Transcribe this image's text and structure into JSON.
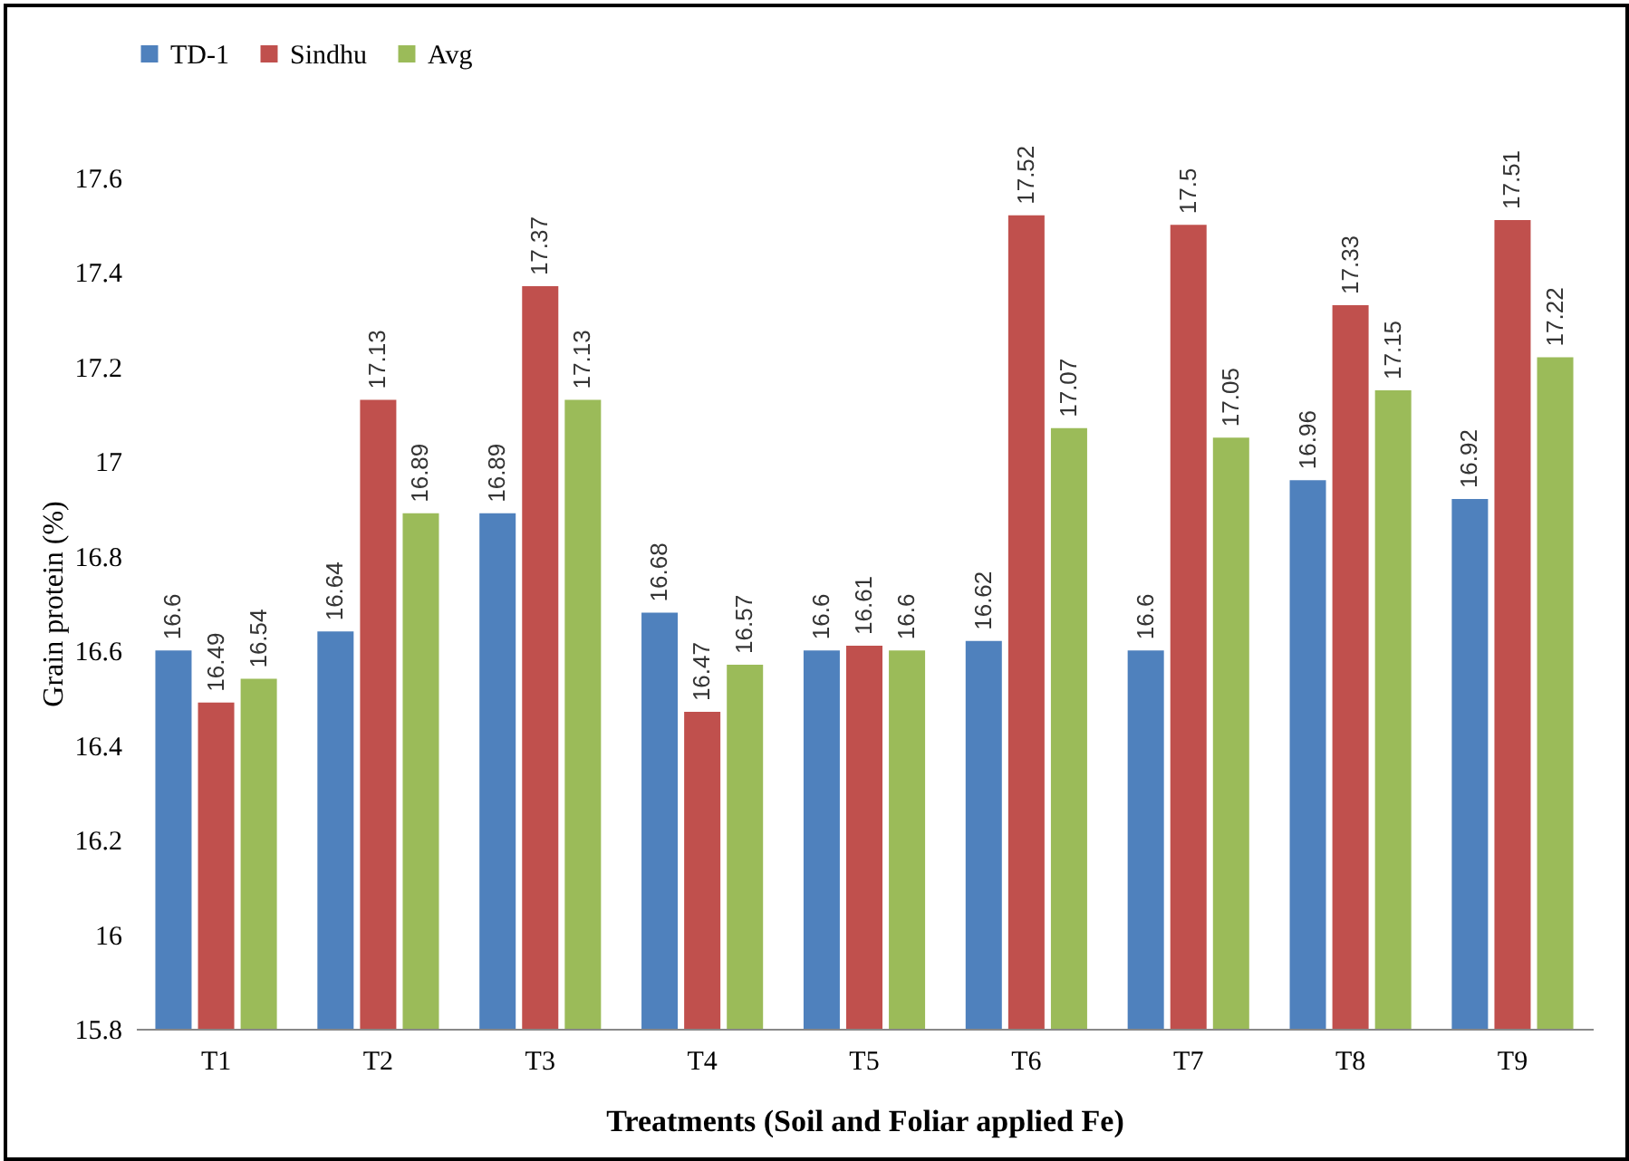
{
  "chart_data": {
    "type": "bar",
    "xlabel": "Treatments (Soil and Foliar applied Fe)",
    "ylabel": "Grain protein (%)",
    "categories": [
      "T1",
      "T2",
      "T3",
      "T4",
      "T5",
      "T6",
      "T7",
      "T8",
      "T9"
    ],
    "series": [
      {
        "name": "TD-1",
        "color": "#4f81bd",
        "values": [
          16.6,
          16.64,
          16.89,
          16.68,
          16.6,
          16.62,
          16.6,
          16.96,
          16.92
        ]
      },
      {
        "name": "Sindhu",
        "color": "#c0504d",
        "values": [
          16.49,
          17.13,
          17.37,
          16.47,
          16.61,
          17.52,
          17.5,
          17.33,
          17.51
        ]
      },
      {
        "name": "Avg",
        "color": "#9bbb59",
        "values": [
          16.54,
          16.89,
          17.13,
          16.57,
          16.6,
          17.07,
          17.05,
          17.15,
          17.22
        ]
      }
    ],
    "ylim": [
      15.8,
      17.6
    ],
    "yticks": [
      15.8,
      16,
      16.2,
      16.4,
      16.6,
      16.8,
      17,
      17.2,
      17.4,
      17.6
    ],
    "data_labels": true,
    "legend": "top",
    "grid": false
  }
}
